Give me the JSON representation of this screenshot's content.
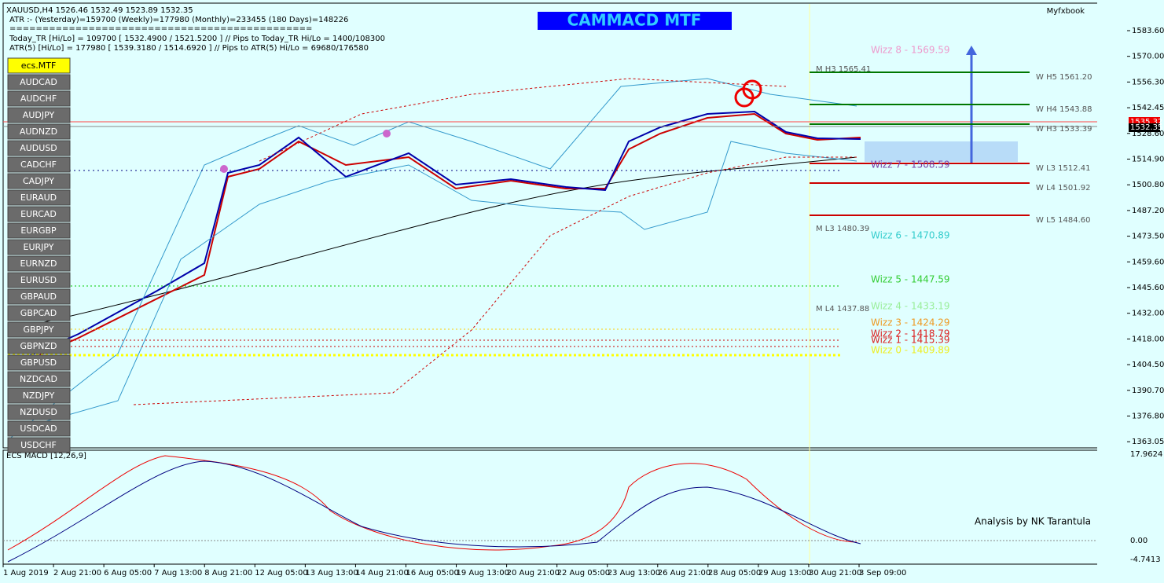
{
  "header": {
    "symbol_line": "XAUUSD,H4  1526.46 1532.49 1523.89 1532.35",
    "atr_line": "ATR :- (Yesterday)=159700     (Weekly)=177980     (Monthly)=233455     (180 Days)=148226",
    "separator": "==============================================",
    "today_tr_line": "Today_TR [Hi/Lo] = 109700 [ 1532.4900 / 1521.5200 ]  // Pips to Today_TR Hi/Lo  = 1400/108300",
    "atr5_line": "ATR(5)      [Hi/Lo] = 177980 [ 1539.3180 / 1514.6920 ]  //  Pips to ATR(5) Hi/Lo     =  69680/176580",
    "title": "CAMMACD MTF",
    "brand": "Myfxbook"
  },
  "symbols": [
    "ecs.MTF",
    "AUDCAD",
    "AUDCHF",
    "AUDJPY",
    "AUDNZD",
    "AUDUSD",
    "CADCHF",
    "CADJPY",
    "EURAUD",
    "EURCAD",
    "EURGBP",
    "EURJPY",
    "EURNZD",
    "EURUSD",
    "GBPAUD",
    "GBPCAD",
    "GBPJPY",
    "GBPNZD",
    "GBPUSD",
    "NZDCAD",
    "NZDJPY",
    "NZDUSD",
    "USDCAD",
    "USDCHF"
  ],
  "price_axis": [
    "1583.60",
    "1570.00",
    "1556.30",
    "1542.45",
    "1528.60",
    "1514.90",
    "1500.80",
    "1487.20",
    "1473.50",
    "1459.60",
    "1445.60",
    "1432.00",
    "1418.00",
    "1404.50",
    "1390.70",
    "1376.80",
    "1363.05"
  ],
  "price_markers": {
    "ask": "1535.32",
    "bid": "1532.35"
  },
  "levels": [
    "W  H5 1561.20",
    "W  H4 1543.88",
    "W  H3 1533.39",
    "W  L3 1512.41",
    "W  L4 1501.92",
    "W  L5 1484.60",
    "M  H3 1565.41",
    "M  L3 1480.39",
    "M  L4 1437.88"
  ],
  "wizz": [
    "Wizz 8 - 1569.59",
    "Wizz 7 - 1508.59",
    "Wizz 6 - 1470.89",
    "Wizz 5 - 1447.59",
    "Wizz 4 - 1433.19",
    "Wizz 3 - 1424.29",
    "Wizz 2 - 1418.79",
    "Wizz 1 - 1415.39",
    "Wizz 0 - 1409.89"
  ],
  "macd": {
    "title": "ECS MACD [12,26,9]",
    "axis": [
      "17.9624",
      "0.00",
      "-4.7413"
    ],
    "credit": "Analysis by NK Tarantula"
  },
  "time_axis": [
    "1 Aug 2019",
    "2 Aug 21:00",
    "6 Aug 05:00",
    "7 Aug 13:00",
    "8 Aug 21:00",
    "12 Aug 05:00",
    "13 Aug 13:00",
    "14 Aug 21:00",
    "16 Aug 05:00",
    "19 Aug 13:00",
    "20 Aug 21:00",
    "22 Aug 05:00",
    "23 Aug 13:00",
    "26 Aug 21:00",
    "28 Aug 05:00",
    "29 Aug 13:00",
    "30 Aug 21:00",
    "3 Sep 09:00"
  ]
}
